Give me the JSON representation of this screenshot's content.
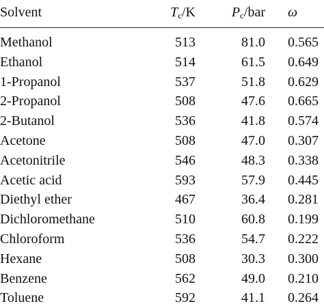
{
  "table": {
    "header": [
      {
        "text": "Solvent"
      },
      {
        "symbol": "T",
        "sub": "c",
        "unit": "/K"
      },
      {
        "symbol": "P",
        "sub": "c",
        "unit": "/bar"
      },
      {
        "symbol": "ω"
      }
    ],
    "rows": [
      [
        "Methanol",
        "513",
        "81.0",
        "0.565"
      ],
      [
        "Ethanol",
        "514",
        "61.5",
        "0.649"
      ],
      [
        "1-Propanol",
        "537",
        "51.8",
        "0.629"
      ],
      [
        "2-Propanol",
        "508",
        "47.6",
        "0.665"
      ],
      [
        "2-Butanol",
        "536",
        "41.8",
        "0.574"
      ],
      [
        "Acetone",
        "508",
        "47.0",
        "0.307"
      ],
      [
        "Acetonitrile",
        "546",
        "48.3",
        "0.338"
      ],
      [
        "Acetic acid",
        "593",
        "57.9",
        "0.445"
      ],
      [
        "Diethyl ether",
        "467",
        "36.4",
        "0.281"
      ],
      [
        "Dichloromethane",
        "510",
        "60.8",
        "0.199"
      ],
      [
        "Chloroform",
        "536",
        "54.7",
        "0.222"
      ],
      [
        "Hexane",
        "508",
        "30.3",
        "0.300"
      ],
      [
        "Benzene",
        "562",
        "49.0",
        "0.210"
      ],
      [
        "Toluene",
        "592",
        "41.1",
        "0.264"
      ]
    ]
  }
}
